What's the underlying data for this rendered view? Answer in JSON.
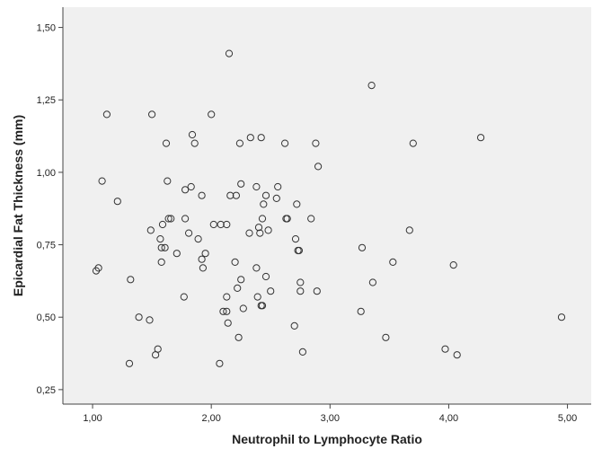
{
  "chart_data": {
    "type": "scatter",
    "title": "",
    "xlabel": "Neutrophil to Lymphocyte Ratio",
    "ylabel": "Epicardial Fat Thickness (mm)",
    "xlim": [
      0.75,
      5.2
    ],
    "ylim": [
      0.2,
      1.57
    ],
    "x_ticks": [
      1,
      2,
      3,
      4,
      5
    ],
    "y_ticks": [
      0.25,
      0.5,
      0.75,
      1.0,
      1.25,
      1.5
    ],
    "x_tick_labels": [
      "1,00",
      "2,00",
      "3,00",
      "4,00",
      "5,00"
    ],
    "y_tick_labels": [
      "0,25",
      "0,50",
      "0,75",
      "1,00",
      "1,25",
      "1,50"
    ],
    "grid": false,
    "colors": {
      "plot_background": "#f0f0f0",
      "marker_stroke": "#333333",
      "axis": "#444444"
    },
    "points": [
      [
        1.03,
        0.66
      ],
      [
        1.05,
        0.67
      ],
      [
        1.08,
        0.97
      ],
      [
        1.12,
        1.2
      ],
      [
        1.21,
        0.9
      ],
      [
        1.32,
        0.63
      ],
      [
        1.31,
        0.34
      ],
      [
        1.39,
        0.5
      ],
      [
        1.48,
        0.49
      ],
      [
        1.49,
        0.8
      ],
      [
        1.5,
        1.2
      ],
      [
        1.53,
        0.37
      ],
      [
        1.55,
        0.39
      ],
      [
        1.57,
        0.77
      ],
      [
        1.58,
        0.69
      ],
      [
        1.58,
        0.74
      ],
      [
        1.59,
        0.82
      ],
      [
        1.61,
        0.74
      ],
      [
        1.62,
        1.1
      ],
      [
        1.63,
        0.97
      ],
      [
        1.64,
        0.84
      ],
      [
        1.66,
        0.84
      ],
      [
        1.71,
        0.72
      ],
      [
        1.77,
        0.57
      ],
      [
        1.78,
        0.94
      ],
      [
        1.78,
        0.84
      ],
      [
        1.81,
        0.79
      ],
      [
        1.83,
        0.95
      ],
      [
        1.84,
        1.13
      ],
      [
        1.86,
        1.1
      ],
      [
        1.89,
        0.77
      ],
      [
        1.92,
        0.7
      ],
      [
        1.92,
        0.92
      ],
      [
        1.93,
        0.67
      ],
      [
        1.95,
        0.72
      ],
      [
        2.0,
        1.2
      ],
      [
        2.02,
        0.82
      ],
      [
        2.07,
        0.34
      ],
      [
        2.08,
        0.82
      ],
      [
        2.1,
        0.52
      ],
      [
        2.13,
        0.52
      ],
      [
        2.13,
        0.57
      ],
      [
        2.13,
        0.82
      ],
      [
        2.14,
        0.48
      ],
      [
        2.15,
        1.41
      ],
      [
        2.16,
        0.92
      ],
      [
        2.2,
        0.69
      ],
      [
        2.21,
        0.92
      ],
      [
        2.22,
        0.6
      ],
      [
        2.23,
        0.43
      ],
      [
        2.24,
        1.1
      ],
      [
        2.25,
        0.63
      ],
      [
        2.25,
        0.96
      ],
      [
        2.27,
        0.53
      ],
      [
        2.32,
        0.79
      ],
      [
        2.33,
        1.12
      ],
      [
        2.38,
        0.95
      ],
      [
        2.38,
        0.67
      ],
      [
        2.39,
        0.57
      ],
      [
        2.4,
        0.81
      ],
      [
        2.41,
        0.79
      ],
      [
        2.42,
        1.12
      ],
      [
        2.42,
        0.54
      ],
      [
        2.43,
        0.54
      ],
      [
        2.43,
        0.84
      ],
      [
        2.44,
        0.89
      ],
      [
        2.46,
        0.92
      ],
      [
        2.46,
        0.64
      ],
      [
        2.48,
        0.8
      ],
      [
        2.5,
        0.59
      ],
      [
        2.55,
        0.91
      ],
      [
        2.56,
        0.95
      ],
      [
        2.62,
        1.1
      ],
      [
        2.63,
        0.84
      ],
      [
        2.64,
        0.84
      ],
      [
        2.7,
        0.47
      ],
      [
        2.71,
        0.77
      ],
      [
        2.72,
        0.89
      ],
      [
        2.73,
        0.73
      ],
      [
        2.74,
        0.73
      ],
      [
        2.75,
        0.59
      ],
      [
        2.75,
        0.62
      ],
      [
        2.77,
        0.38
      ],
      [
        2.84,
        0.84
      ],
      [
        2.88,
        1.1
      ],
      [
        2.89,
        0.59
      ],
      [
        2.9,
        1.02
      ],
      [
        3.26,
        0.52
      ],
      [
        3.27,
        0.74
      ],
      [
        3.35,
        1.3
      ],
      [
        3.36,
        0.62
      ],
      [
        3.47,
        0.43
      ],
      [
        3.53,
        0.69
      ],
      [
        3.67,
        0.8
      ],
      [
        3.7,
        1.1
      ],
      [
        3.97,
        0.39
      ],
      [
        4.04,
        0.68
      ],
      [
        4.07,
        0.37
      ],
      [
        4.27,
        1.12
      ],
      [
        4.95,
        0.5
      ]
    ]
  }
}
